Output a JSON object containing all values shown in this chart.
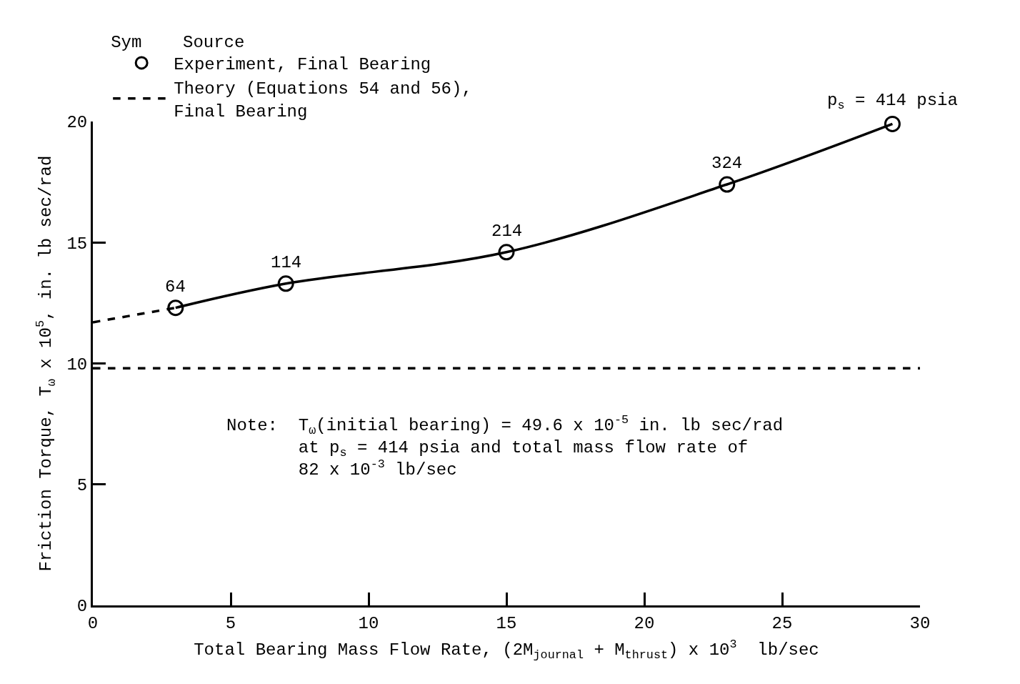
{
  "chart_data": {
    "type": "scatter",
    "xlabel": "Total Bearing Mass Flow Rate, (2M$_{journal}$ + M$_{thrust}$) x 10$^{3}$  lb/sec",
    "ylabel": "Friction Torque, T$_{ω}$ x 10$^{5}$, in. lb sec/rad",
    "legend_title": "Sym    Source",
    "series": [
      {
        "name": "Experiment, Final Bearing",
        "color": "#000000",
        "marker": "circle",
        "x": [
          3,
          7,
          15,
          23,
          29
        ],
        "values": [
          12.3,
          13.3,
          14.6,
          17.4,
          19.9
        ]
      },
      {
        "name": "Theory (Equations 54 and 56),\nFinal Bearing",
        "type": "line",
        "color": "#000000",
        "line_style": "dashed",
        "x": [
          0,
          30
        ],
        "values": [
          9.8,
          9.8
        ]
      },
      {
        "type": "line",
        "color": "#000000",
        "line_style": "solid",
        "x": [
          3,
          7,
          15,
          23,
          29
        ],
        "values": [
          12.3,
          13.3,
          14.6,
          17.4,
          19.9
        ]
      },
      {
        "type": "line",
        "color": "#000000",
        "line_style": "dashed",
        "x": [
          0,
          3
        ],
        "values": [
          11.7,
          12.3
        ]
      }
    ],
    "xlim": [
      0,
      30
    ],
    "xticks": [
      0,
      5,
      10,
      15,
      20,
      25,
      30
    ],
    "ylim": [
      0,
      20
    ],
    "yticks": [
      0,
      5,
      10,
      15,
      20
    ],
    "legend": "top left",
    "annotations": [
      {
        "text": "64",
        "x": 3,
        "y": 12.3
      },
      {
        "text": "114",
        "x": 7,
        "y": 13.3
      },
      {
        "text": "214",
        "x": 15,
        "y": 14.6
      },
      {
        "text": "324",
        "x": 23,
        "y": 17.4
      },
      {
        "text": "p$_{s}$ = 414 psia",
        "x": 29,
        "y": 19.9
      },
      "Note:  T$_{ω}$(initial bearing) = 49.6 x 10$^{-5}$ in. lb sec/rad\n       at p$_{s}$ = 414 psia and total mass flow rate of\n       82 x 10$^{-3}$ lb/sec"
    ]
  }
}
